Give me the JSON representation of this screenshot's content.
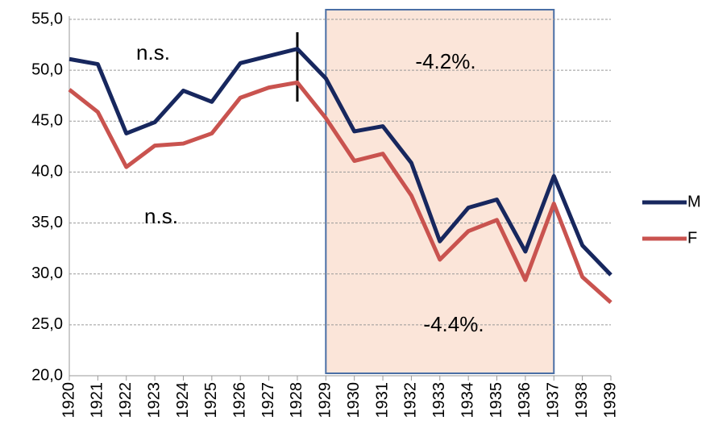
{
  "chart_data": {
    "type": "line",
    "categories": [
      "1920",
      "1921",
      "1922",
      "1923",
      "1924",
      "1925",
      "1926",
      "1927",
      "1928",
      "1929",
      "1930",
      "1931",
      "1932",
      "1933",
      "1934",
      "1935",
      "1936",
      "1937",
      "1938",
      "1939"
    ],
    "series": [
      {
        "name": "M",
        "color": "#17275e",
        "values": [
          51.1,
          50.6,
          43.8,
          44.9,
          48.0,
          46.9,
          50.7,
          51.4,
          52.1,
          49.2,
          44.0,
          44.5,
          40.9,
          33.2,
          36.5,
          37.3,
          32.2,
          39.6,
          32.8,
          29.9
        ]
      },
      {
        "name": "F",
        "color": "#c9534f",
        "values": [
          48.1,
          45.9,
          40.5,
          42.6,
          42.8,
          43.8,
          47.3,
          48.3,
          48.8,
          45.3,
          41.1,
          41.8,
          37.7,
          31.4,
          34.2,
          35.3,
          29.4,
          36.9,
          29.7,
          27.2
        ]
      }
    ],
    "ylim": [
      20,
      55
    ],
    "yticks": [
      {
        "value": 20,
        "label": "20,0"
      },
      {
        "value": 25,
        "label": "25,0"
      },
      {
        "value": 30,
        "label": "30,0"
      },
      {
        "value": 35,
        "label": "35,0"
      },
      {
        "value": 40,
        "label": "40,0"
      },
      {
        "value": 45,
        "label": "45,0"
      },
      {
        "value": 50,
        "label": "50,0"
      },
      {
        "value": 55,
        "label": "55,0"
      }
    ],
    "grid": true,
    "legend": "right",
    "shaded_span": [
      "1929",
      "1937"
    ],
    "break_line": "1928",
    "annotations": [
      "n.s.",
      "n.s.",
      "-4.2%.",
      "-4.4%."
    ]
  }
}
